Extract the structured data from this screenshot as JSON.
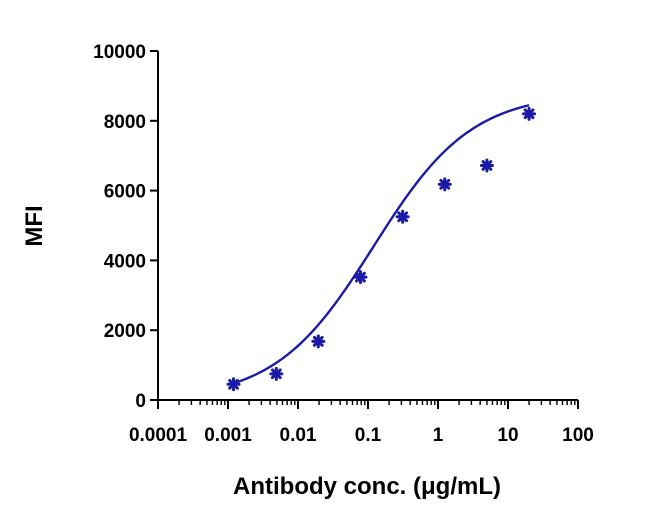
{
  "chart_data": {
    "type": "scatter",
    "xlabel": "Antibody conc. (μg/mL)",
    "ylabel": "MFI",
    "x_scale": "log",
    "xlim": [
      0.0001,
      100
    ],
    "ylim": [
      0,
      10000
    ],
    "x_ticks": [
      0.0001,
      0.001,
      0.01,
      0.1,
      1,
      10,
      100
    ],
    "x_tick_labels": [
      "0.0001",
      "0.001",
      "0.01",
      "0.1",
      "1",
      "10",
      "100"
    ],
    "y_ticks": [
      0,
      2000,
      4000,
      6000,
      8000,
      10000
    ],
    "y_tick_labels": [
      "0",
      "2000",
      "4000",
      "6000",
      "8000",
      "10000"
    ],
    "grid": false,
    "colors": {
      "series": "#1a1aa6"
    },
    "series": [
      {
        "points": [
          {
            "x": 0.0012,
            "y": 450
          },
          {
            "x": 0.0049,
            "y": 750
          },
          {
            "x": 0.0195,
            "y": 1680
          },
          {
            "x": 0.078,
            "y": 3520
          },
          {
            "x": 0.3125,
            "y": 5250
          },
          {
            "x": 1.25,
            "y": 6180
          },
          {
            "x": 5,
            "y": 6720
          },
          {
            "x": 20,
            "y": 8200
          }
        ],
        "fit": {
          "model": "4PL",
          "bottom": 0,
          "top": 8800,
          "ec50": 0.12,
          "hill": 0.62,
          "x_range": [
            0.0012,
            20
          ]
        }
      }
    ]
  }
}
